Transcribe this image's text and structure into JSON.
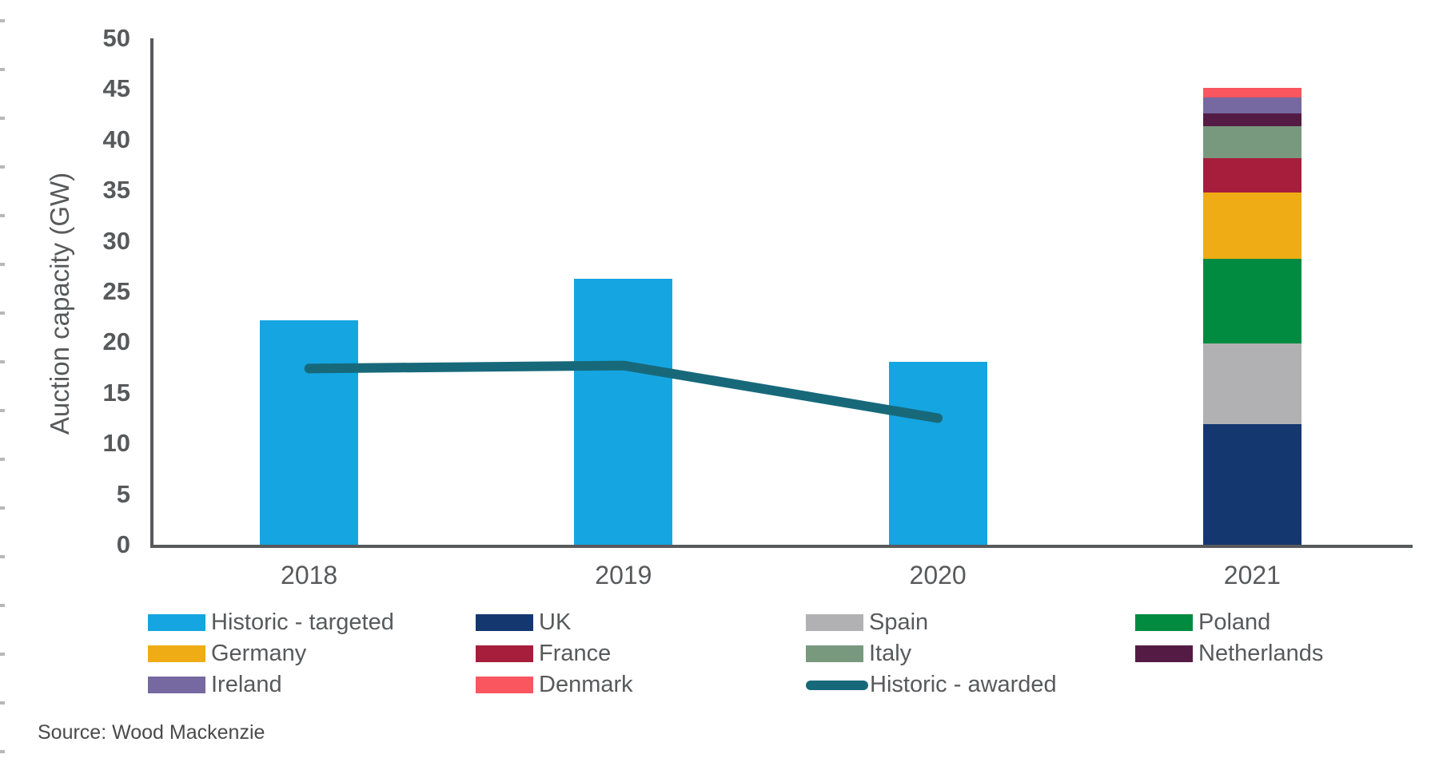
{
  "chart_data": {
    "type": "bar",
    "title": "",
    "ylabel": "Auction capacity (GW)",
    "ylim": [
      0,
      50
    ],
    "yticks": [
      0,
      5,
      10,
      15,
      20,
      25,
      30,
      35,
      40,
      45,
      50
    ],
    "categories": [
      "2018",
      "2019",
      "2020",
      "2021"
    ],
    "grid": false,
    "legend_position": "bottom",
    "series": [
      {
        "name": "Historic - targeted",
        "kind": "bar",
        "color": "#15A5E1",
        "values": [
          22.2,
          26.3,
          18.1,
          null
        ]
      },
      {
        "name": "UK",
        "kind": "stacked-bar",
        "color": "#14376F",
        "values": [
          null,
          null,
          null,
          11.9
        ]
      },
      {
        "name": "Spain",
        "kind": "stacked-bar",
        "color": "#B1B1B3",
        "values": [
          null,
          null,
          null,
          8.0
        ]
      },
      {
        "name": "Poland",
        "kind": "stacked-bar",
        "color": "#008B41",
        "values": [
          null,
          null,
          null,
          8.3
        ]
      },
      {
        "name": "Germany",
        "kind": "stacked-bar",
        "color": "#EFAC14",
        "values": [
          null,
          null,
          null,
          6.6
        ]
      },
      {
        "name": "France",
        "kind": "stacked-bar",
        "color": "#A71E3D",
        "values": [
          null,
          null,
          null,
          3.4
        ]
      },
      {
        "name": "Italy",
        "kind": "stacked-bar",
        "color": "#78997E",
        "values": [
          null,
          null,
          null,
          3.1
        ]
      },
      {
        "name": "Netherlands",
        "kind": "stacked-bar",
        "color": "#541C45",
        "values": [
          null,
          null,
          null,
          1.3
        ]
      },
      {
        "name": "Ireland",
        "kind": "stacked-bar",
        "color": "#7668A0",
        "values": [
          null,
          null,
          null,
          1.6
        ]
      },
      {
        "name": "Denmark",
        "kind": "stacked-bar",
        "color": "#F9565F",
        "values": [
          null,
          null,
          null,
          0.9
        ]
      },
      {
        "name": "Historic - awarded",
        "kind": "line",
        "color": "#17697A",
        "values": [
          17.4,
          17.7,
          12.5,
          null
        ]
      }
    ],
    "stack_order_bottom_to_top": [
      "UK",
      "Spain",
      "Poland",
      "Germany",
      "France",
      "Italy",
      "Netherlands",
      "Ireland",
      "Denmark"
    ]
  },
  "legend": {
    "items": [
      {
        "label": "Historic - targeted",
        "color": "#15A5E1",
        "swatch": "bar"
      },
      {
        "label": "UK",
        "color": "#14376F",
        "swatch": "bar"
      },
      {
        "label": "Spain",
        "color": "#B1B1B3",
        "swatch": "bar"
      },
      {
        "label": "Poland",
        "color": "#008B41",
        "swatch": "bar"
      },
      {
        "label": "Germany",
        "color": "#EFAC14",
        "swatch": "bar"
      },
      {
        "label": "France",
        "color": "#A71E3D",
        "swatch": "bar"
      },
      {
        "label": "Italy",
        "color": "#78997E",
        "swatch": "bar"
      },
      {
        "label": "Netherlands",
        "color": "#541C45",
        "swatch": "bar"
      },
      {
        "label": "Ireland",
        "color": "#7668A0",
        "swatch": "bar"
      },
      {
        "label": "Denmark",
        "color": "#F9565F",
        "swatch": "bar"
      },
      {
        "label": "Historic - awarded",
        "color": "#17697A",
        "swatch": "line"
      }
    ]
  },
  "source": {
    "text": "Source: Wood Mackenzie"
  },
  "colors": {
    "axis": "#58595B",
    "text": "#58595B",
    "background": "#FFFFFF"
  }
}
